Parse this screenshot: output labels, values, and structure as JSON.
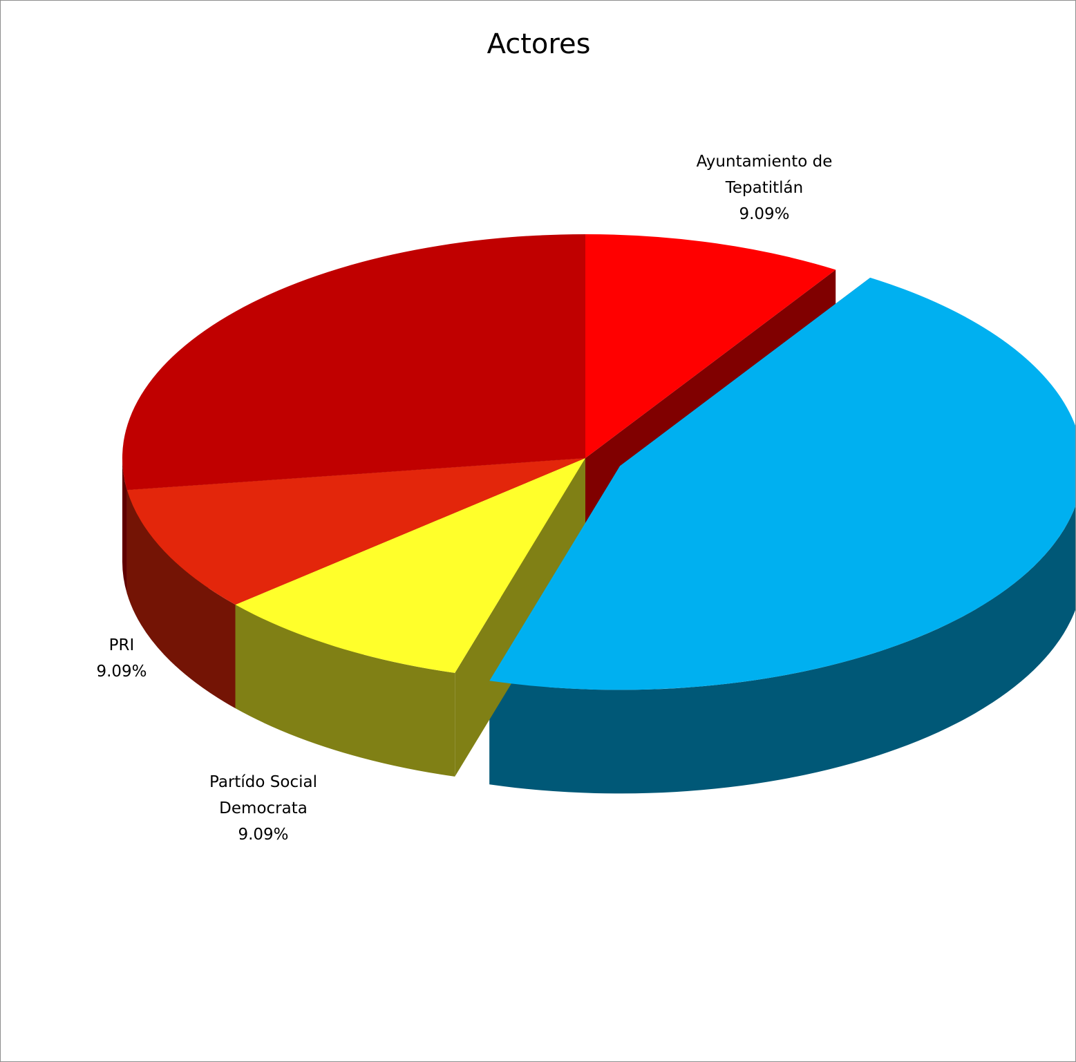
{
  "chart_data": {
    "type": "pie",
    "title": "Actores",
    "series": [
      {
        "name": "",
        "slices": [
          {
            "label": "Ayuntamiento de Tepatitlán",
            "value": 9.09,
            "color": "#ff0000",
            "side_color": "#800000",
            "exploded": false
          },
          {
            "label": "",
            "value": 45.45,
            "color": "#00b0f0",
            "side_color": "#005877",
            "exploded": true
          },
          {
            "label": "Partído Social Democrata",
            "value": 9.09,
            "color": "#ffff2b",
            "side_color": "#808015",
            "exploded": false
          },
          {
            "label": "PRI",
            "value": 9.09,
            "color": "#e3260b",
            "side_color": "#741405",
            "exploded": false
          },
          {
            "label": "",
            "value": 27.27,
            "color": "#c00000",
            "side_color": "#600000",
            "exploded": false
          }
        ]
      }
    ],
    "style": "3d",
    "legend": "none"
  },
  "labels": {
    "ayuntamiento": {
      "line1": "Ayuntamiento de",
      "line2": "Tepatitlán",
      "pct": "9.09%"
    },
    "pri": {
      "line1": "PRI",
      "pct": "9.09%"
    },
    "psd": {
      "line1": "Partído Social",
      "line2": "Democrata",
      "pct": "9.09%"
    }
  }
}
